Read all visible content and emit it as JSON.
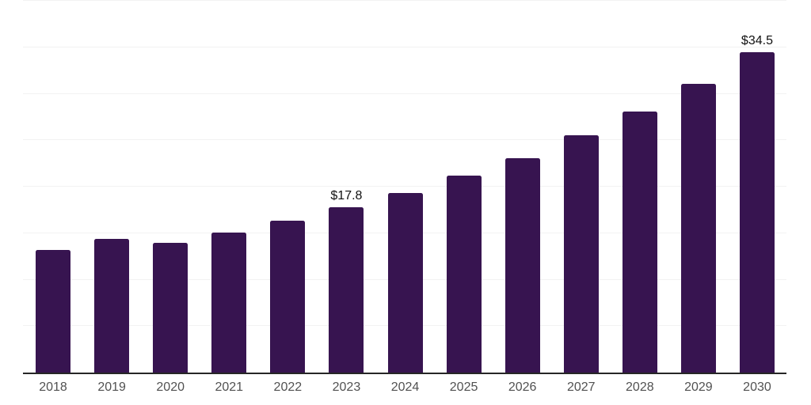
{
  "page": {
    "background": "#ffffff"
  },
  "chart_data": {
    "type": "bar",
    "title": "",
    "xlabel": "",
    "ylabel": "",
    "categories": [
      "2018",
      "2019",
      "2020",
      "2021",
      "2022",
      "2023",
      "2024",
      "2025",
      "2026",
      "2027",
      "2028",
      "2029",
      "2030"
    ],
    "values": [
      13.2,
      14.4,
      14.0,
      15.1,
      16.3,
      17.8,
      19.3,
      21.2,
      23.1,
      25.5,
      28.1,
      31.1,
      34.5
    ],
    "shown_data_labels": [
      {
        "category": "2023",
        "text": "$17.8"
      },
      {
        "category": "2030",
        "text": "$34.5"
      }
    ],
    "ylim": [
      0,
      40
    ],
    "grid_step": 5,
    "grid": "horizontal",
    "legend": "none",
    "styles": {
      "bar_color": "#371450",
      "grid_color": "#f2f2f2",
      "axis_color": "#262626",
      "tick_color": "#515151",
      "data_label_color": "#111111"
    }
  }
}
